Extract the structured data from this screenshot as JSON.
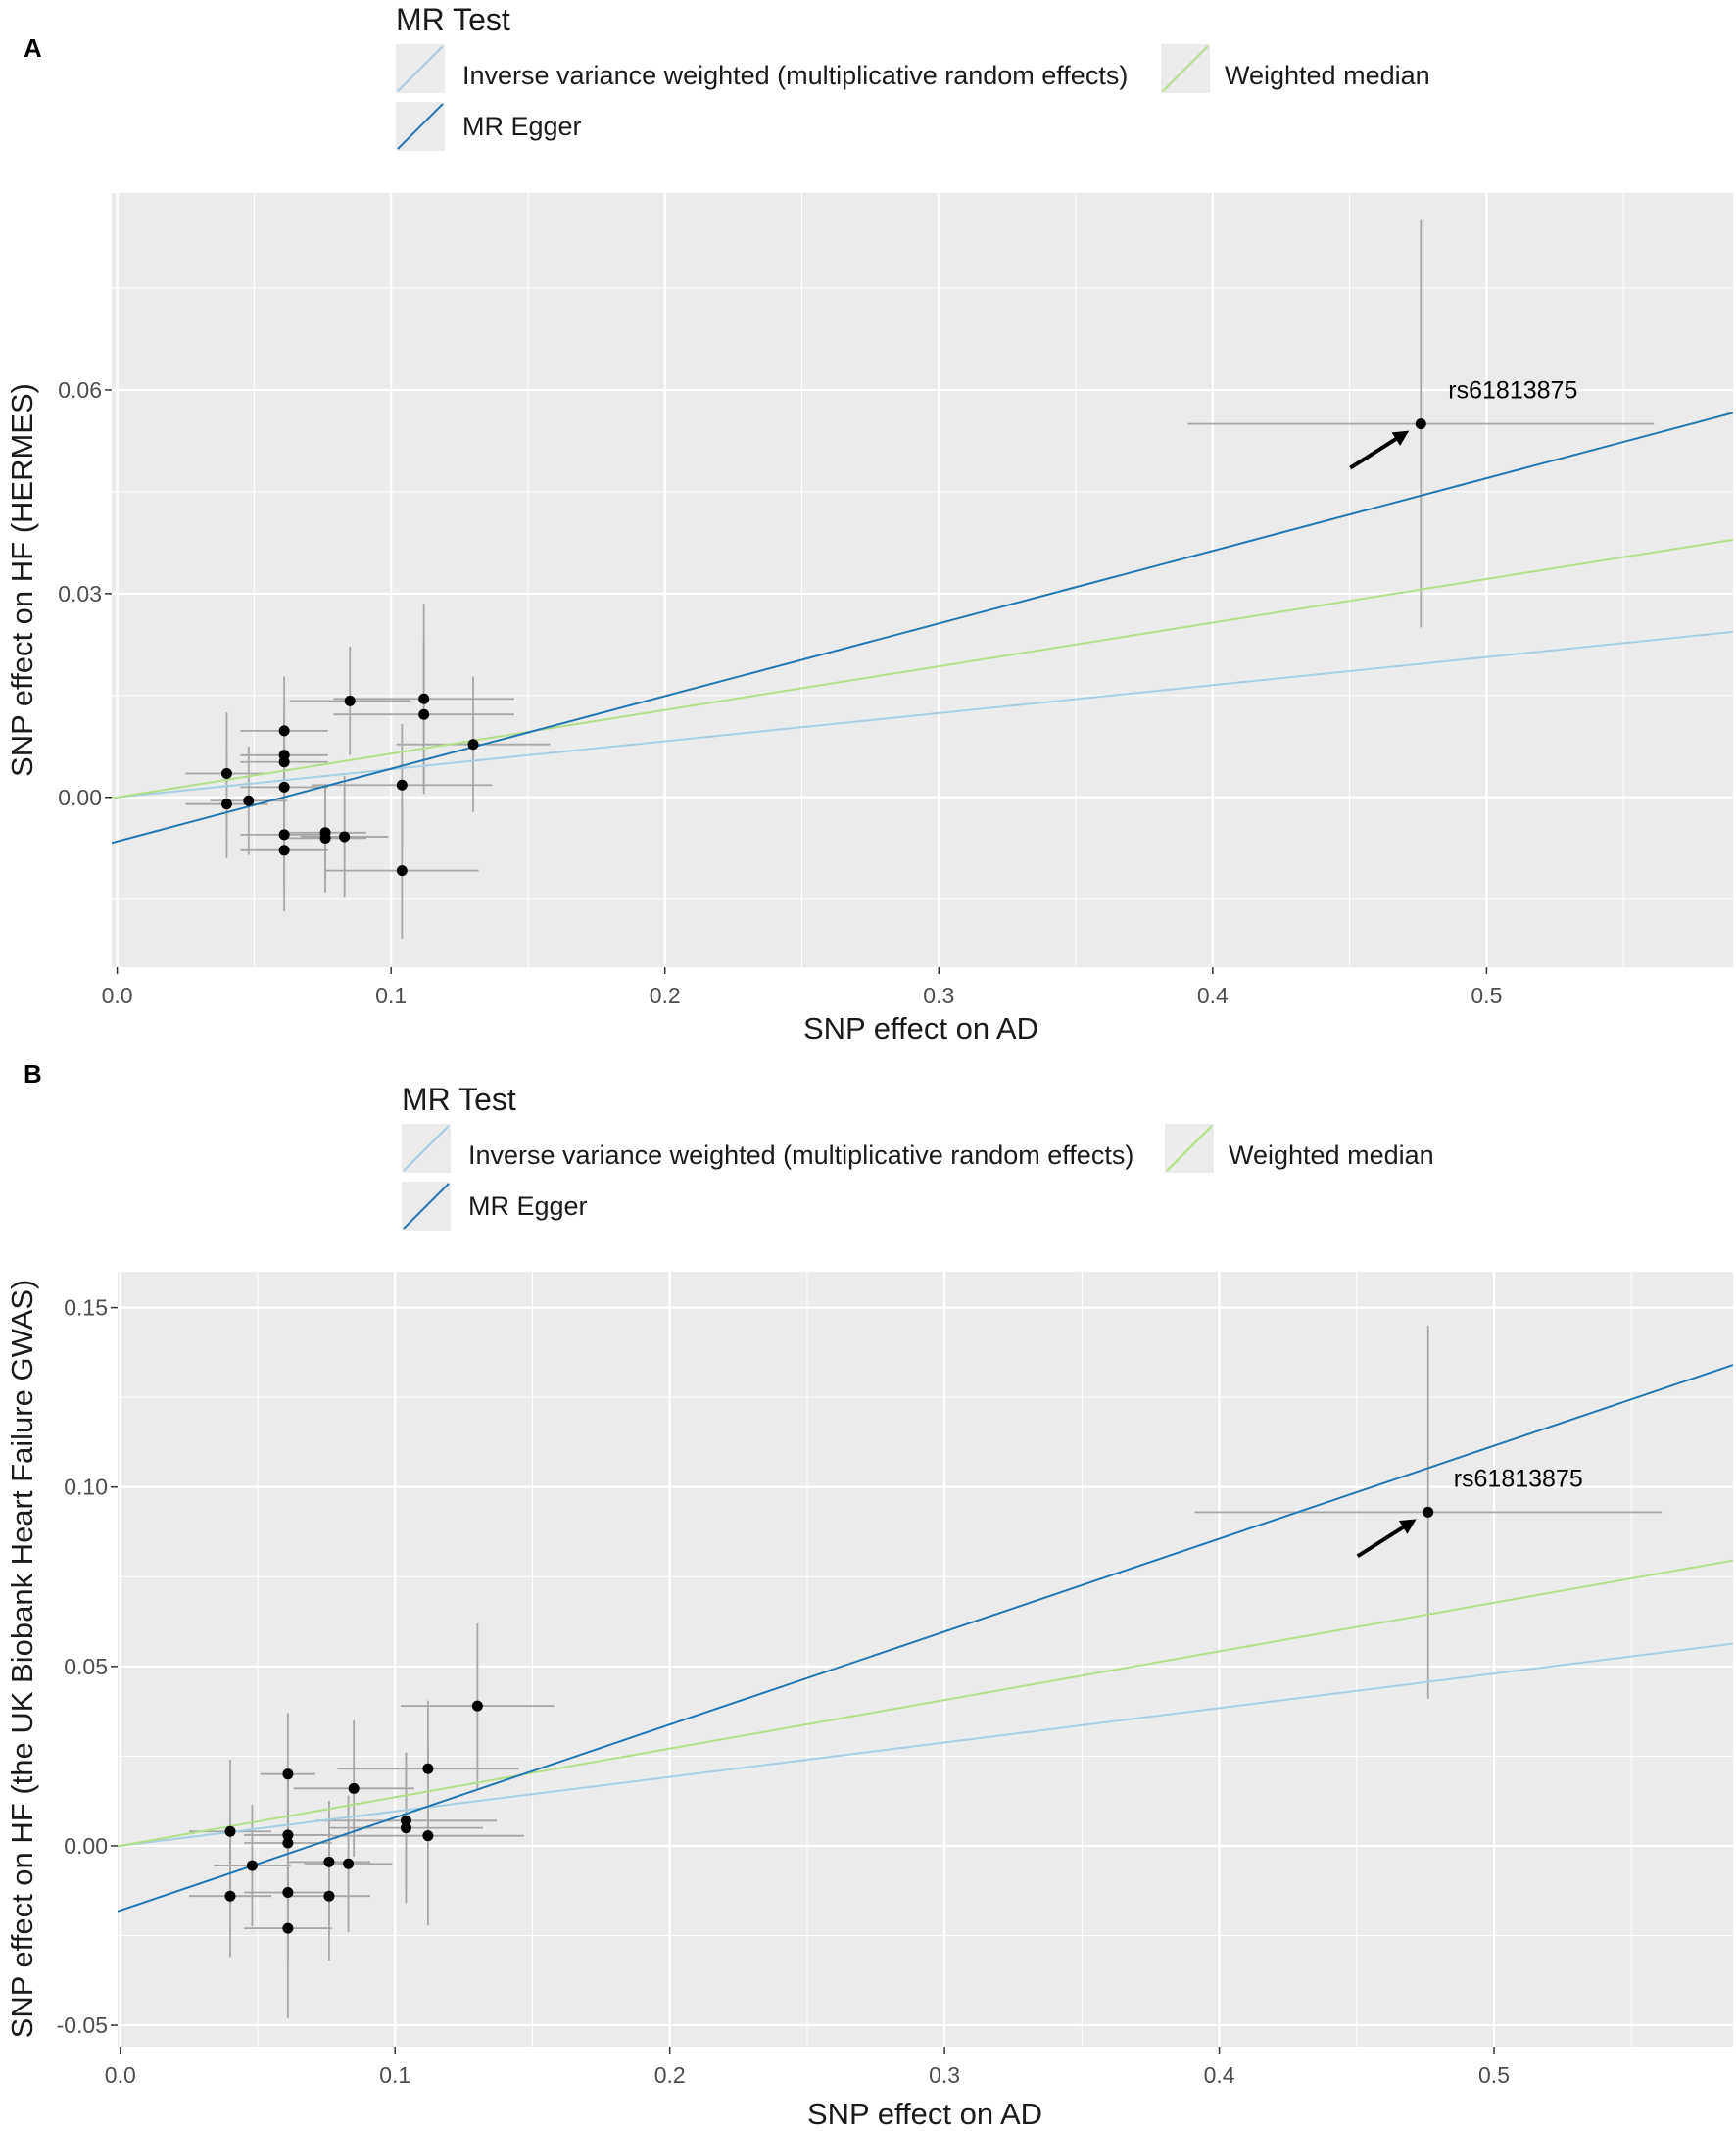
{
  "colors": {
    "ivw": "#a6cee3",
    "egger": "#1f78b4",
    "wmedian": "#b2df8a",
    "panel_bg": "#ebebeb",
    "grid": "#ffffff",
    "errorbar": "#a6a6a6",
    "point": "#000000"
  },
  "legend": {
    "title": "MR Test",
    "items": [
      {
        "key": "ivw",
        "label": "Inverse variance weighted (multiplicative random effects)"
      },
      {
        "key": "wmedian",
        "label": "Weighted median"
      },
      {
        "key": "egger",
        "label": "MR Egger"
      }
    ]
  },
  "chart_data": [
    {
      "panel_label": "A",
      "type": "scatter",
      "xlabel": "SNP effect on AD",
      "ylabel": "SNP effect on HF (HERMES)",
      "xlim": [
        -0.002,
        0.59
      ],
      "ylim": [
        -0.025,
        0.089
      ],
      "xticks": [
        0.0,
        0.1,
        0.2,
        0.3,
        0.4,
        0.5
      ],
      "xtick_labels": [
        "0.0",
        "0.1",
        "0.2",
        "0.3",
        "0.4",
        "0.5"
      ],
      "yticks": [
        0.0,
        0.03,
        0.06
      ],
      "ytick_labels": [
        "0.00",
        "0.03",
        "0.06"
      ],
      "lines": [
        {
          "key": "ivw",
          "intercept": 0.0,
          "slope": 0.0413
        },
        {
          "key": "wmedian",
          "intercept": 0.0,
          "slope": 0.0643
        },
        {
          "key": "egger",
          "intercept": -0.0065,
          "slope": 0.107
        }
      ],
      "points": [
        {
          "x": 0.04,
          "y": 0.0035,
          "xerr": 0.015,
          "yerr": 0.009
        },
        {
          "x": 0.04,
          "y": -0.001,
          "xerr": 0.015,
          "yerr": 0.008
        },
        {
          "x": 0.048,
          "y": -0.0005,
          "xerr": 0.014,
          "yerr": 0.008
        },
        {
          "x": 0.061,
          "y": 0.0098,
          "xerr": 0.016,
          "yerr": 0.008
        },
        {
          "x": 0.061,
          "y": 0.0062,
          "xerr": 0.016,
          "yerr": 0.007
        },
        {
          "x": 0.061,
          "y": 0.0052,
          "xerr": 0.016,
          "yerr": 0.007
        },
        {
          "x": 0.061,
          "y": 0.0015,
          "xerr": 0.016,
          "yerr": 0.007
        },
        {
          "x": 0.061,
          "y": -0.0055,
          "xerr": 0.016,
          "yerr": 0.008
        },
        {
          "x": 0.061,
          "y": -0.0078,
          "xerr": 0.016,
          "yerr": 0.009
        },
        {
          "x": 0.076,
          "y": -0.0052,
          "xerr": 0.015,
          "yerr": 0.007
        },
        {
          "x": 0.076,
          "y": -0.006,
          "xerr": 0.015,
          "yerr": 0.008
        },
        {
          "x": 0.083,
          "y": -0.0058,
          "xerr": 0.016,
          "yerr": 0.009
        },
        {
          "x": 0.085,
          "y": 0.0142,
          "xerr": 0.022,
          "yerr": 0.008
        },
        {
          "x": 0.104,
          "y": 0.0018,
          "xerr": 0.033,
          "yerr": 0.009
        },
        {
          "x": 0.104,
          "y": -0.0108,
          "xerr": 0.028,
          "yerr": 0.01
        },
        {
          "x": 0.112,
          "y": 0.0145,
          "xerr": 0.033,
          "yerr": 0.014
        },
        {
          "x": 0.112,
          "y": 0.0122,
          "xerr": 0.033,
          "yerr": 0.011
        },
        {
          "x": 0.13,
          "y": 0.0078,
          "xerr": 0.028,
          "yerr": 0.01
        },
        {
          "x": 0.476,
          "y": 0.055,
          "xerr": 0.085,
          "yerr": 0.03
        }
      ],
      "annotation": {
        "text": "rs61813875",
        "x": 0.476,
        "y": 0.055
      }
    },
    {
      "panel_label": "B",
      "type": "scatter",
      "xlabel": "SNP effect on AD",
      "ylabel": "SNP effect on HF (the UK Biobank Heart Failure GWAS)",
      "xlim": [
        -0.001,
        0.587
      ],
      "ylim": [
        -0.056,
        0.16
      ],
      "xticks": [
        0.0,
        0.1,
        0.2,
        0.3,
        0.4,
        0.5
      ],
      "xtick_labels": [
        "0.0",
        "0.1",
        "0.2",
        "0.3",
        "0.4",
        "0.5"
      ],
      "yticks": [
        -0.05,
        0.0,
        0.05,
        0.1,
        0.15
      ],
      "ytick_labels": [
        "-0.05",
        "0.00",
        "0.05",
        "0.10",
        "0.15"
      ],
      "lines": [
        {
          "key": "ivw",
          "intercept": 0.0,
          "slope": 0.096
        },
        {
          "key": "wmedian",
          "intercept": 0.0,
          "slope": 0.1355
        },
        {
          "key": "egger",
          "intercept": -0.018,
          "slope": 0.259
        }
      ],
      "points": [
        {
          "x": 0.04,
          "y": 0.004,
          "xerr": 0.015,
          "yerr": 0.02
        },
        {
          "x": 0.04,
          "y": -0.014,
          "xerr": 0.015,
          "yerr": 0.017
        },
        {
          "x": 0.048,
          "y": -0.0055,
          "xerr": 0.014,
          "yerr": 0.017
        },
        {
          "x": 0.061,
          "y": 0.02,
          "xerr": 0.01,
          "yerr": 0.017
        },
        {
          "x": 0.061,
          "y": 0.003,
          "xerr": 0.016,
          "yerr": 0.019
        },
        {
          "x": 0.061,
          "y": 0.0008,
          "xerr": 0.016,
          "yerr": 0.02
        },
        {
          "x": 0.061,
          "y": -0.013,
          "xerr": 0.016,
          "yerr": 0.02
        },
        {
          "x": 0.061,
          "y": -0.023,
          "xerr": 0.016,
          "yerr": 0.025
        },
        {
          "x": 0.076,
          "y": -0.0045,
          "xerr": 0.015,
          "yerr": 0.017
        },
        {
          "x": 0.076,
          "y": -0.014,
          "xerr": 0.015,
          "yerr": 0.018
        },
        {
          "x": 0.083,
          "y": -0.005,
          "xerr": 0.016,
          "yerr": 0.019
        },
        {
          "x": 0.085,
          "y": 0.016,
          "xerr": 0.022,
          "yerr": 0.019
        },
        {
          "x": 0.104,
          "y": 0.007,
          "xerr": 0.033,
          "yerr": 0.019
        },
        {
          "x": 0.104,
          "y": 0.005,
          "xerr": 0.028,
          "yerr": 0.021
        },
        {
          "x": 0.112,
          "y": 0.0215,
          "xerr": 0.033,
          "yerr": 0.019
        },
        {
          "x": 0.112,
          "y": 0.0028,
          "xerr": 0.035,
          "yerr": 0.025
        },
        {
          "x": 0.13,
          "y": 0.039,
          "xerr": 0.028,
          "yerr": 0.023
        },
        {
          "x": 0.476,
          "y": 0.093,
          "xerr": 0.085,
          "yerr": 0.052
        }
      ],
      "annotation": {
        "text": "rs61813875",
        "x": 0.476,
        "y": 0.093
      }
    }
  ]
}
